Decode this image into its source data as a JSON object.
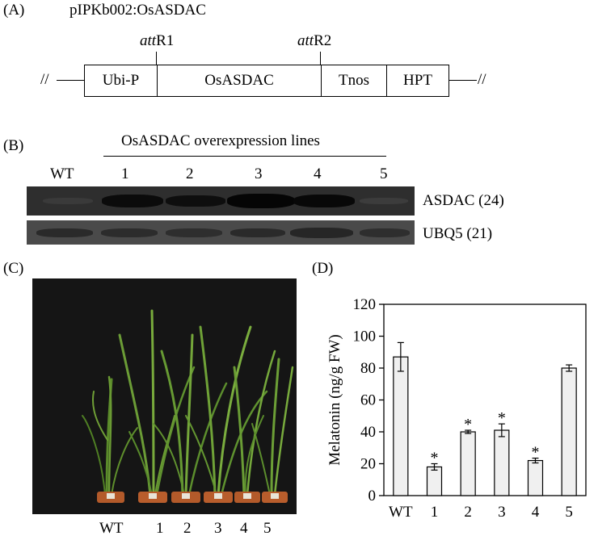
{
  "panel_a": {
    "label": "(A)",
    "construct": "pIPKb002:OsASDAC",
    "att1_italic": "att",
    "att1_suffix": "R1",
    "att2_italic": "att",
    "att2_suffix": "R2",
    "break_symbol": "//",
    "segments": [
      "Ubi-P",
      "OsASDAC",
      "Tnos",
      "HPT"
    ]
  },
  "panel_b": {
    "label": "(B)",
    "header": "OsASDAC overexpression lines",
    "lanes": [
      "WT",
      "1",
      "2",
      "3",
      "4",
      "5"
    ],
    "gel1_label": "ASDAC (24)",
    "gel2_label": "UBQ5 (21)"
  },
  "panel_c": {
    "label": "(C)",
    "pot_labels": [
      "WT",
      "1",
      "2",
      "3",
      "4",
      "5"
    ]
  },
  "panel_d": {
    "label": "(D)"
  },
  "chart_data": {
    "type": "bar",
    "categories": [
      "WT",
      "1",
      "2",
      "3",
      "4",
      "5"
    ],
    "values": [
      87,
      18,
      40,
      41,
      22,
      80
    ],
    "errors": [
      9,
      2,
      1,
      4,
      1.5,
      2
    ],
    "significant": [
      false,
      true,
      true,
      true,
      true,
      false
    ],
    "marker": "*",
    "ylabel": "Melatonin (ng/g FW)",
    "ylim": [
      0,
      120
    ],
    "yticks": [
      0,
      20,
      40,
      60,
      80,
      100,
      120
    ],
    "bar_color": "#f0f0f0"
  }
}
